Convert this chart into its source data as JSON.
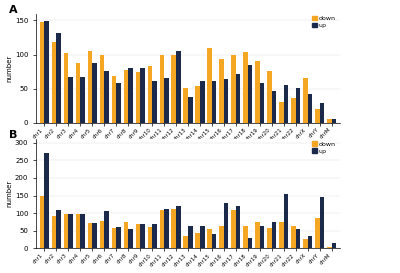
{
  "panel_A": {
    "categories": [
      "chr1",
      "chr2",
      "chr3",
      "chr4",
      "chr5",
      "chr6",
      "chr7",
      "chr8",
      "chr9",
      "chr10",
      "chr11",
      "chr12",
      "chr13",
      "chr14",
      "chr15",
      "chr16",
      "chr17",
      "chr18",
      "chr19",
      "chr20",
      "chr21",
      "chr22",
      "chrX",
      "chrY",
      "chrM"
    ],
    "down": [
      148,
      119,
      103,
      87,
      106,
      99,
      68,
      77,
      75,
      84,
      100,
      99,
      51,
      54,
      109,
      94,
      99,
      104,
      91,
      76,
      31,
      36,
      65,
      20,
      5
    ],
    "up": [
      149,
      132,
      67,
      67,
      88,
      76,
      59,
      81,
      81,
      61,
      66,
      105,
      38,
      61,
      61,
      64,
      71,
      85,
      59,
      47,
      56,
      51,
      42,
      29,
      6
    ],
    "ylabel": "number",
    "ylim": [
      0,
      160
    ],
    "yticks": [
      0,
      50,
      100,
      150
    ]
  },
  "panel_B": {
    "categories": [
      "chr1",
      "chr2",
      "chr3",
      "chr4",
      "chr5",
      "chr6",
      "chr7",
      "chr8",
      "chr9",
      "chr10",
      "chr11",
      "chr12",
      "chr13",
      "chr14",
      "chr15",
      "chr16",
      "chr17",
      "chr18",
      "chr19",
      "chr20",
      "chr21",
      "chr22",
      "chrX",
      "chrY",
      "chrM"
    ],
    "down": [
      150,
      93,
      99,
      97,
      73,
      77,
      57,
      76,
      68,
      60,
      110,
      113,
      35,
      45,
      55,
      65,
      110,
      65,
      75,
      57,
      75,
      65,
      27,
      85,
      5
    ],
    "up": [
      270,
      110,
      98,
      97,
      73,
      107,
      60,
      55,
      70,
      70,
      113,
      120,
      65,
      65,
      40,
      130,
      120,
      30,
      65,
      75,
      155,
      55,
      35,
      145,
      15
    ],
    "ylabel": "number",
    "ylim": [
      0,
      310
    ],
    "yticks": [
      0,
      50,
      100,
      150,
      200,
      250,
      300
    ]
  },
  "color_down": "#F5A623",
  "color_up": "#1B2A4A",
  "legend_down": "down",
  "legend_up": "up",
  "bar_width": 0.38,
  "background_color": "#FFFFFF",
  "label_A": "A",
  "label_B": "B"
}
